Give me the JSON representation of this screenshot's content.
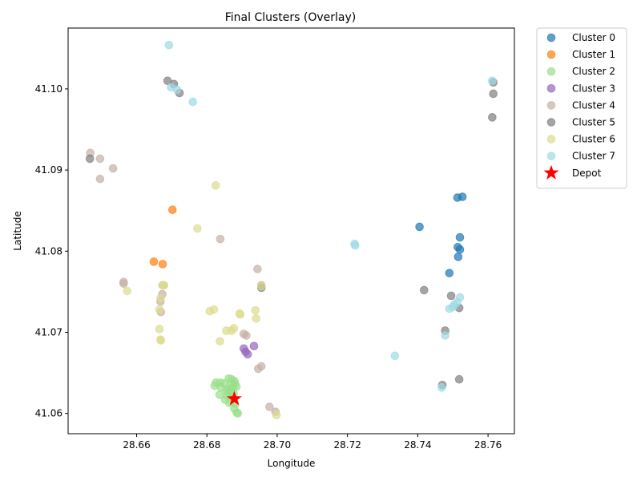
{
  "chart_data": {
    "type": "scatter",
    "title": "Final Clusters (Overlay)",
    "xlabel": "Longitude",
    "ylabel": "Latitude",
    "xlim": [
      28.6405,
      28.7675
    ],
    "ylim": [
      41.0575,
      41.1075
    ],
    "xticks": [
      28.66,
      28.68,
      28.7,
      28.72,
      28.74,
      28.76
    ],
    "xtick_labels": [
      "28.66",
      "28.68",
      "28.70",
      "28.72",
      "28.74",
      "28.76"
    ],
    "yticks": [
      41.06,
      41.07,
      41.08,
      41.09,
      41.1
    ],
    "ytick_labels": [
      "41.06",
      "41.07",
      "41.08",
      "41.09",
      "41.10"
    ],
    "grid": false,
    "legend_position": "outside-upper-right",
    "series": [
      {
        "name": "Cluster 0",
        "color": "#1f77b4",
        "points": [
          [
            28.7513,
            41.0866
          ],
          [
            28.7527,
            41.0867
          ],
          [
            28.7405,
            41.083
          ],
          [
            28.752,
            41.0817
          ],
          [
            28.7514,
            41.0805
          ],
          [
            28.752,
            41.0802
          ],
          [
            28.7515,
            41.0793
          ],
          [
            28.749,
            41.0773
          ]
        ]
      },
      {
        "name": "Cluster 1",
        "color": "#ff7f0e",
        "points": [
          [
            28.6702,
            41.0851
          ],
          [
            28.6649,
            41.0787
          ],
          [
            28.6674,
            41.0784
          ]
        ]
      },
      {
        "name": "Cluster 2",
        "color": "#98df8a",
        "points": [
          [
            28.6862,
            41.0643
          ],
          [
            28.687,
            41.0642
          ],
          [
            28.6878,
            41.064
          ],
          [
            28.688,
            41.0637
          ],
          [
            28.6868,
            41.0635
          ],
          [
            28.6874,
            41.0632
          ],
          [
            28.686,
            41.063
          ],
          [
            28.6866,
            41.0627
          ],
          [
            28.6855,
            41.0628
          ],
          [
            28.6876,
            41.0625
          ],
          [
            28.6884,
            41.0633
          ],
          [
            28.6858,
            41.0622
          ],
          [
            28.687,
            41.062
          ],
          [
            28.6848,
            41.0637
          ],
          [
            28.6838,
            41.0638
          ],
          [
            28.6826,
            41.0638
          ],
          [
            28.6822,
            41.0634
          ],
          [
            28.684,
            41.0632
          ],
          [
            28.6836,
            41.0623
          ],
          [
            28.6852,
            41.0617
          ],
          [
            28.6864,
            41.0613
          ],
          [
            28.688,
            41.0612
          ],
          [
            28.6885,
            41.0601
          ],
          [
            28.6888,
            41.06
          ],
          [
            28.6878,
            41.0606
          ]
        ]
      },
      {
        "name": "Cluster 3",
        "color": "#9467bd",
        "points": [
          [
            28.6905,
            41.068
          ],
          [
            28.691,
            41.0676
          ],
          [
            28.6916,
            41.0673
          ],
          [
            28.6934,
            41.0683
          ]
        ]
      },
      {
        "name": "Cluster 4",
        "color": "#c5b0a5",
        "points": [
          [
            28.6468,
            41.0921
          ],
          [
            28.6496,
            41.0914
          ],
          [
            28.6533,
            41.0902
          ],
          [
            28.6496,
            41.0889
          ],
          [
            28.6838,
            41.0815
          ],
          [
            28.6944,
            41.0778
          ],
          [
            28.6563,
            41.0762
          ],
          [
            28.6563,
            41.076
          ],
          [
            28.6676,
            41.0758
          ],
          [
            28.6673,
            41.0747
          ],
          [
            28.6668,
            41.0738
          ],
          [
            28.6669,
            41.0725
          ],
          [
            28.6955,
            41.0758
          ],
          [
            28.6905,
            41.0698
          ],
          [
            28.6912,
            41.0696
          ],
          [
            28.6955,
            41.0658
          ],
          [
            28.6946,
            41.0655
          ],
          [
            28.6978,
            41.0608
          ],
          [
            28.6995,
            41.0602
          ]
        ]
      },
      {
        "name": "Cluster 5",
        "color": "#7f7f7f",
        "points": [
          [
            28.6467,
            41.0914
          ],
          [
            28.6688,
            41.101
          ],
          [
            28.6706,
            41.1006
          ],
          [
            28.6722,
            41.0995
          ],
          [
            28.7615,
            41.1008
          ],
          [
            28.7615,
            41.0994
          ],
          [
            28.7612,
            41.0965
          ],
          [
            28.6955,
            41.0755
          ],
          [
            28.7418,
            41.0752
          ],
          [
            28.7495,
            41.0745
          ],
          [
            28.7518,
            41.073
          ],
          [
            28.7478,
            41.0702
          ],
          [
            28.747,
            41.0635
          ],
          [
            28.7518,
            41.0642
          ]
        ]
      },
      {
        "name": "Cluster 6",
        "color": "#dbdb8d",
        "points": [
          [
            28.6825,
            41.0881
          ],
          [
            28.6773,
            41.0828
          ],
          [
            28.6573,
            41.0751
          ],
          [
            28.6673,
            41.0758
          ],
          [
            28.6678,
            41.0758
          ],
          [
            28.6668,
            41.0742
          ],
          [
            28.6665,
            41.0728
          ],
          [
            28.6808,
            41.0726
          ],
          [
            28.682,
            41.0728
          ],
          [
            28.6893,
            41.0723
          ],
          [
            28.6895,
            41.0722
          ],
          [
            28.6938,
            41.0727
          ],
          [
            28.694,
            41.0717
          ],
          [
            28.6955,
            41.0757
          ],
          [
            28.6665,
            41.0704
          ],
          [
            28.6668,
            41.0691
          ],
          [
            28.6669,
            41.069
          ],
          [
            28.6837,
            41.0689
          ],
          [
            28.6855,
            41.0702
          ],
          [
            28.687,
            41.0702
          ],
          [
            28.6877,
            41.0705
          ],
          [
            28.6998,
            41.0598
          ]
        ]
      },
      {
        "name": "Cluster 7",
        "color": "#9edae5",
        "points": [
          [
            28.6692,
            41.1054
          ],
          [
            28.6698,
            41.1002
          ],
          [
            28.6715,
            41.0999
          ],
          [
            28.676,
            41.0984
          ],
          [
            28.7612,
            41.101
          ],
          [
            28.722,
            41.0809
          ],
          [
            28.7222,
            41.0807
          ],
          [
            28.752,
            41.0743
          ],
          [
            28.7512,
            41.0737
          ],
          [
            28.7504,
            41.0734
          ],
          [
            28.75,
            41.0731
          ],
          [
            28.749,
            41.0729
          ],
          [
            28.7478,
            41.0696
          ],
          [
            28.7335,
            41.0671
          ],
          [
            28.7468,
            41.0632
          ]
        ]
      }
    ],
    "depot": {
      "name": "Depot",
      "color": "#ff0000",
      "x": 28.6878,
      "y": 41.0618
    }
  }
}
